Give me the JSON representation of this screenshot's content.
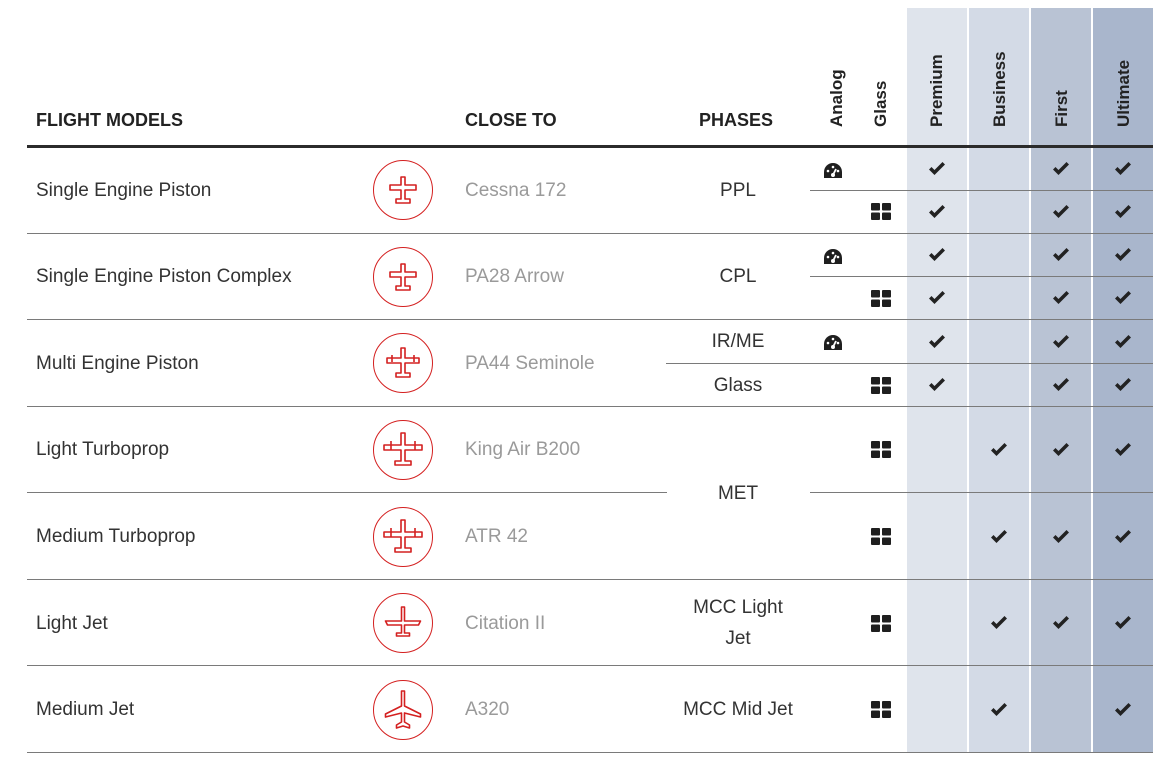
{
  "header": {
    "flight_models": "FLIGHT MODELS",
    "close_to": "CLOSE TO",
    "phases": "PHASES",
    "analog": "Analog",
    "glass": "Glass",
    "premium": "Premium",
    "business": "Business",
    "first": "First",
    "ultimate": "Ultimate"
  },
  "colors": {
    "premium": "#dfe4ec",
    "business": "#d3dae6",
    "first": "#b9c3d4",
    "ultimate": "#a9b6cc",
    "icon_red": "#d42020"
  },
  "rows": [
    {
      "model": "Single Engine Piston",
      "close_to": "Cessna 172",
      "phase": "PPL",
      "icon": "small-plane-icon"
    },
    {
      "model": "Single Engine Piston Complex",
      "close_to": "PA28 Arrow",
      "phase": "CPL",
      "icon": "small-plane-icon"
    },
    {
      "model": "Multi Engine Piston",
      "close_to": "PA44 Seminole",
      "phase_analog": "IR/ME",
      "phase_glass": "Glass",
      "icon": "twin-prop-icon"
    },
    {
      "model": "Light Turboprop",
      "close_to": "King Air B200",
      "icon": "turboprop-icon"
    },
    {
      "model": "Medium Turboprop",
      "close_to": "ATR 42",
      "icon": "turboprop-icon"
    },
    {
      "model": "Light Jet",
      "close_to": "Citation II",
      "phase_line1": "MCC Light",
      "phase_line2": "Jet",
      "icon": "light-jet-icon"
    },
    {
      "model": "Medium Jet",
      "close_to": "A320",
      "phase": "MCC Mid Jet",
      "icon": "airliner-icon"
    }
  ],
  "shared_phase": "MET",
  "availability": {
    "premium": [
      true,
      true,
      true,
      true,
      true,
      true,
      false,
      false,
      false,
      false
    ],
    "business": [
      false,
      false,
      false,
      false,
      false,
      false,
      true,
      true,
      true,
      true
    ],
    "first": [
      true,
      true,
      true,
      true,
      true,
      true,
      true,
      true,
      true,
      false
    ],
    "ultimate": [
      true,
      true,
      true,
      true,
      true,
      true,
      true,
      true,
      true,
      true
    ]
  }
}
